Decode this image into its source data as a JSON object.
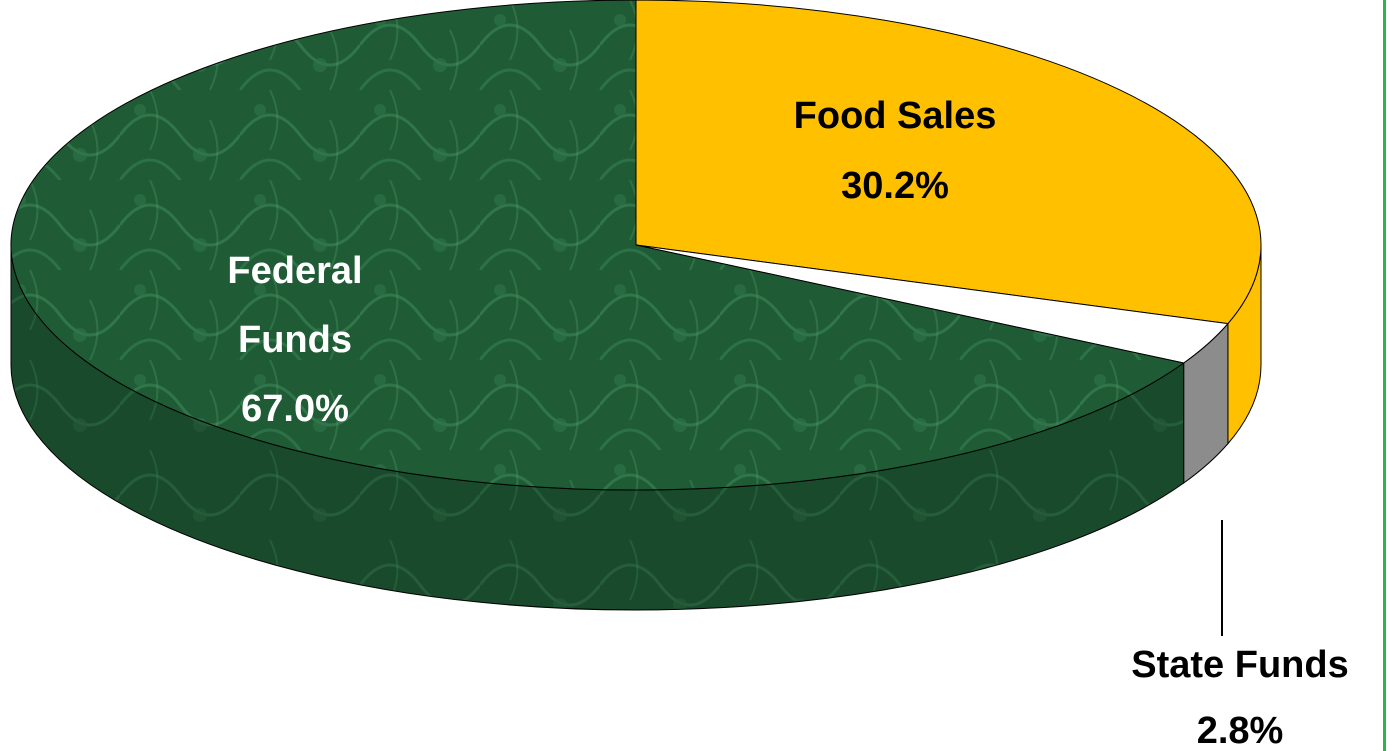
{
  "chart_data": {
    "type": "pie",
    "style": "3d",
    "title": "",
    "slices": [
      {
        "label": "Food Sales",
        "value": 30.2,
        "value_text": "30.2%",
        "color": "#FFC000"
      },
      {
        "label": "State Funds",
        "value": 2.8,
        "value_text": "2.8%",
        "color": "#FFFFFF"
      },
      {
        "label": "Federal Funds",
        "value": 67.0,
        "value_text": "67.0%",
        "color": "#1E5A34"
      }
    ],
    "label_lines": {
      "Food Sales": [
        "Food Sales",
        "30.2%"
      ],
      "State Funds": [
        "State Funds",
        "2.8%"
      ],
      "Federal Funds": [
        "Federal",
        "Funds",
        "67.0%"
      ]
    },
    "label_colors": {
      "Food Sales": "#000000",
      "State Funds": "#000000",
      "Federal Funds": "#FFFFFF"
    }
  },
  "colors": {
    "frame_border": "#2DB34A",
    "side_dark": "#163D24",
    "state_side": "#8C8C8C",
    "outline": "#000000"
  }
}
